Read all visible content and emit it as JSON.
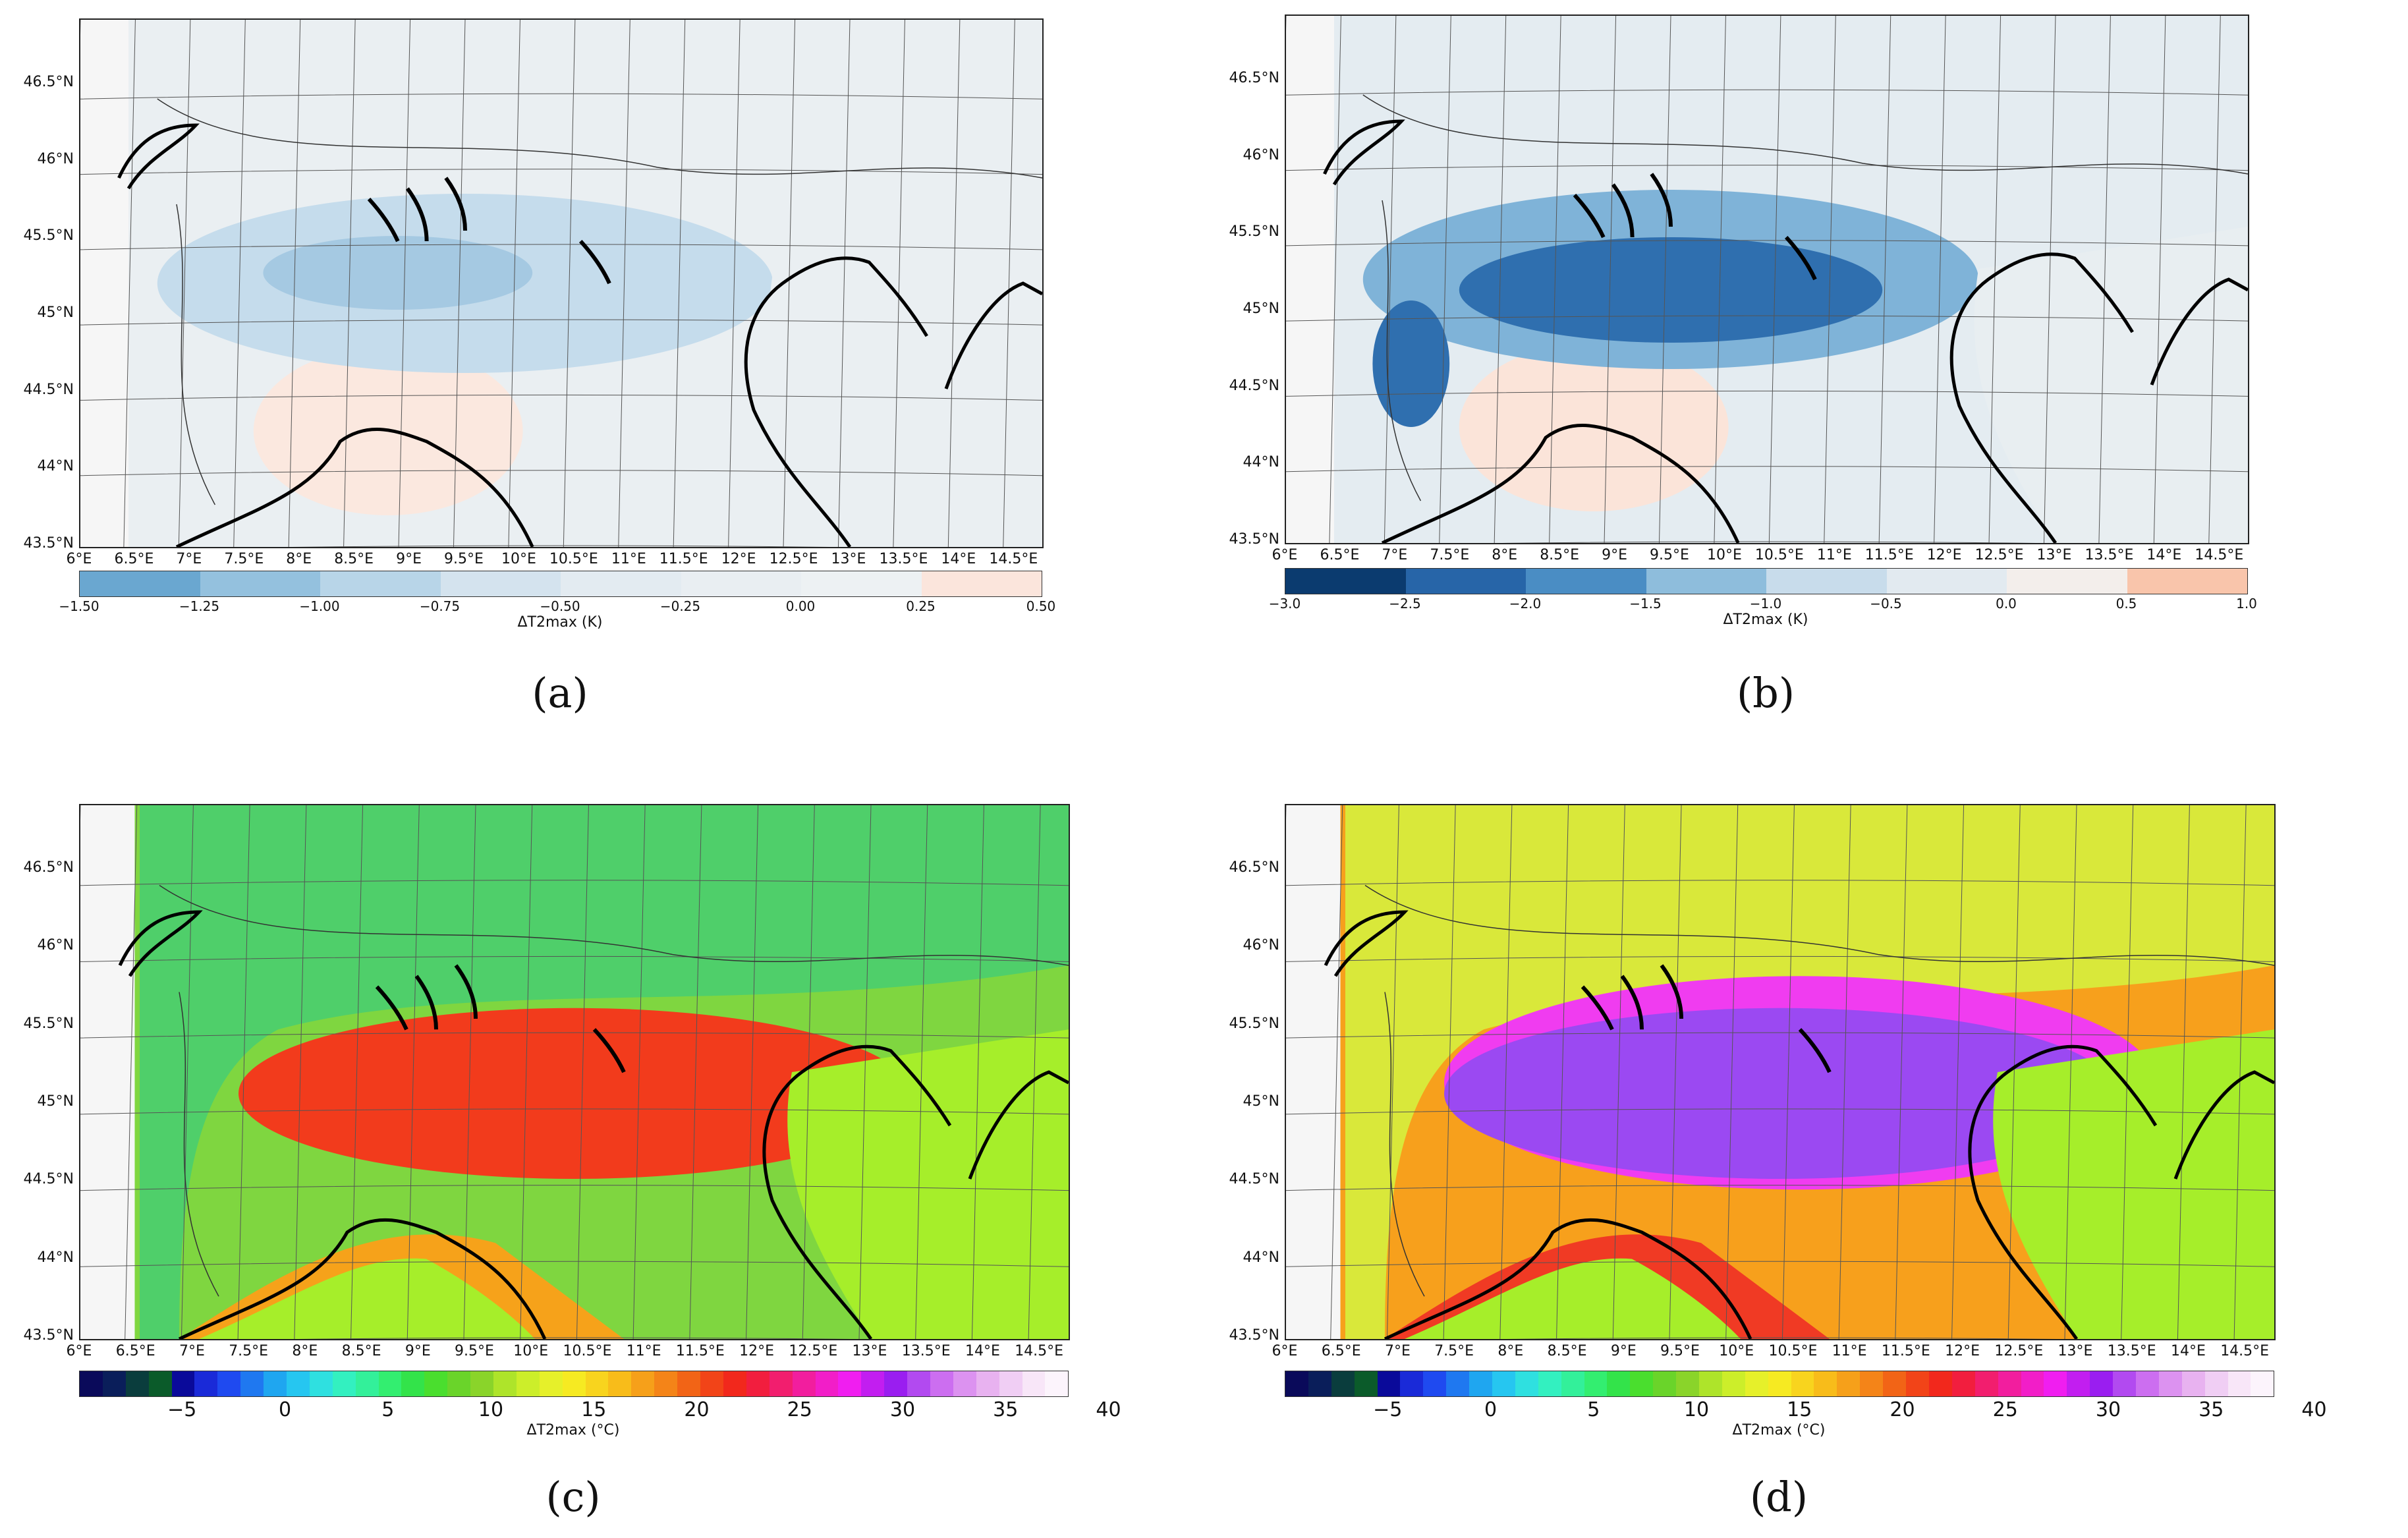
{
  "panels": [
    {
      "id": "a",
      "caption": "(a)",
      "lat_labels": [
        "46.5°N",
        "46°N",
        "45.5°N",
        "45°N",
        "44.5°N",
        "44°N",
        "43.5°N"
      ],
      "lon_labels": [
        "6°E",
        "6.5°E",
        "7°E",
        "7.5°E",
        "8°E",
        "8.5°E",
        "9°E",
        "9.5°E",
        "10°E",
        "10.5°E",
        "11°E",
        "11.5°E",
        "12°E",
        "12.5°E",
        "13°E",
        "13.5°E",
        "14°E",
        "14.5°E"
      ],
      "colorbar": {
        "title": "ΔT2max (K)",
        "ticks": [
          "−1.50",
          "−1.25",
          "−1.00",
          "−0.75",
          "−0.50",
          "−0.25",
          "0.00",
          "0.25",
          "0.50"
        ],
        "colors": [
          "#6aa7d0",
          "#94c1de",
          "#b8d5e8",
          "#d4e3ee",
          "#e3ebf1",
          "#e9eef2",
          "#edf1f3",
          "#fbe5dc"
        ]
      },
      "fill": {
        "background": "#eaeff2",
        "anomaly": "#c5dcec",
        "anomaly_core": "#a5c9e2",
        "sea": "#eaeff2",
        "warm": "#fbe8df"
      }
    },
    {
      "id": "b",
      "caption": "(b)",
      "lat_labels": [
        "46.5°N",
        "46°N",
        "45.5°N",
        "45°N",
        "44.5°N",
        "44°N",
        "43.5°N"
      ],
      "lon_labels": [
        "6°E",
        "6.5°E",
        "7°E",
        "7.5°E",
        "8°E",
        "8.5°E",
        "9°E",
        "9.5°E",
        "10°E",
        "10.5°E",
        "11°E",
        "11.5°E",
        "12°E",
        "12.5°E",
        "13°E",
        "13.5°E",
        "14°E",
        "14.5°E"
      ],
      "colorbar": {
        "title": "ΔT2max (K)",
        "ticks": [
          "−3.0",
          "−2.5",
          "−2.0",
          "−1.5",
          "−1.0",
          "−0.5",
          "0.0",
          "0.5",
          "1.0"
        ],
        "colors": [
          "#0b3b6f",
          "#2765a8",
          "#4a8dc4",
          "#8ebddc",
          "#c8dceb",
          "#e2eaf0",
          "#f3eeeb",
          "#f9c5ab"
        ]
      },
      "fill": {
        "background": "#e4ecf1",
        "anomaly": "#7fb3d8",
        "anomaly_core": "#2f6faf",
        "sea": "#e8eef1",
        "warm": "#fbe4d9"
      }
    },
    {
      "id": "c",
      "caption": "(c)",
      "lat_labels": [
        "46.5°N",
        "46°N",
        "45.5°N",
        "45°N",
        "44.5°N",
        "44°N",
        "43.5°N"
      ],
      "lon_labels": [
        "6°E",
        "6.5°E",
        "7°E",
        "7.5°E",
        "8°E",
        "8.5°E",
        "9°E",
        "9.5°E",
        "10°E",
        "10.5°E",
        "11°E",
        "11.5°E",
        "12°E",
        "12.5°E",
        "13°E",
        "13.5°E",
        "14°E",
        "14.5°E"
      ],
      "colorbar": {
        "title": "ΔT2max (°C)",
        "ticks": [
          "−5",
          "0",
          "5",
          "10",
          "15",
          "20",
          "25",
          "30",
          "35",
          "40"
        ]
      },
      "fill": {
        "background": "#7fd640",
        "mountain": "#4fcf6a",
        "plain": "#f23b1c",
        "hills": "#f6a21a",
        "sea": "#a6ee2a"
      }
    },
    {
      "id": "d",
      "caption": "(d)",
      "lat_labels": [
        "46.5°N",
        "46°N",
        "45.5°N",
        "45°N",
        "44.5°N",
        "44°N",
        "43.5°N"
      ],
      "lon_labels": [
        "6°E",
        "6.5°E",
        "7°E",
        "7.5°E",
        "8°E",
        "8.5°E",
        "9°E",
        "9.5°E",
        "10°E",
        "10.5°E",
        "11°E",
        "11.5°E",
        "12°E",
        "12.5°E",
        "13°E",
        "13.5°E",
        "14°E",
        "14.5°E"
      ],
      "colorbar": {
        "title": "ΔT2max (°C)",
        "ticks": [
          "−5",
          "0",
          "5",
          "10",
          "15",
          "20",
          "25",
          "30",
          "35",
          "40"
        ]
      },
      "fill": {
        "background": "#f7a01c",
        "mountain": "#d9e83a",
        "plain": "#9b49f2",
        "ring": "#f03cf0",
        "hills": "#f03a24",
        "sea": "#a6ee2a"
      }
    }
  ],
  "rainbow_colors": [
    "#0a0a5a",
    "#0a1e5a",
    "#0a3d3d",
    "#0b5b2a",
    "#0a0a9a",
    "#1a2ad8",
    "#1f4af0",
    "#1f78f0",
    "#1fa6f0",
    "#26c6f0",
    "#2fe0e0",
    "#33f0c0",
    "#33f09a",
    "#33ee70",
    "#33e34a",
    "#4ade2e",
    "#6ad42a",
    "#8ad42a",
    "#aee42a",
    "#ccee2a",
    "#e6f02a",
    "#f6ea22",
    "#f8d41e",
    "#f8bc1a",
    "#f6a01a",
    "#f48418",
    "#f26416",
    "#f24418",
    "#f2281c",
    "#f21e3e",
    "#f21e6e",
    "#f21e9e",
    "#f21ec8",
    "#f01ef0",
    "#c21ef0",
    "#9a1ef0",
    "#b24af0",
    "#cc6ef0",
    "#dc92f0",
    "#e8b2f0",
    "#f0cef4",
    "#f8e6f8",
    "#fcf4fc"
  ]
}
